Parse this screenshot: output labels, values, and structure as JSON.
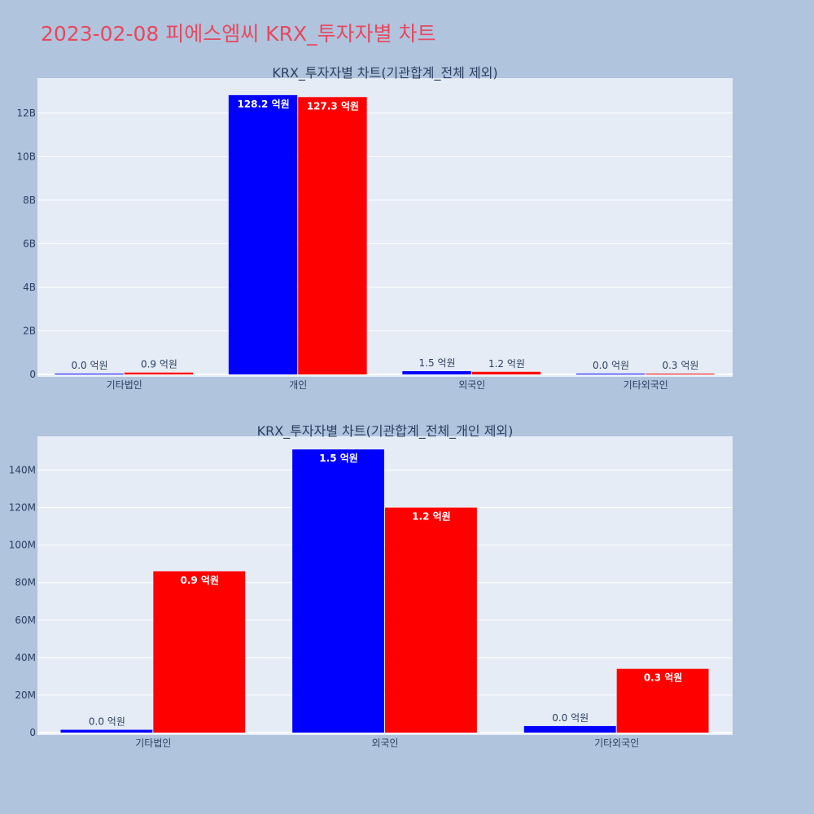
{
  "page": {
    "title": "2023-02-08 피에스엠씨 KRX_투자자별 차트"
  },
  "colors": {
    "background": "#b0c4de",
    "plot_bg": "#e5ecf6",
    "title": "#e8485e",
    "series_a": "#0000ff",
    "series_b": "#ff0000"
  },
  "chart_data": [
    {
      "type": "bar",
      "title": "KRX_투자자별 차트(기관합계_전체 제외)",
      "categories": [
        "기타법인",
        "개인",
        "외국인",
        "기타외국인"
      ],
      "series": [
        {
          "values": [
            2000000,
            12820000000,
            150000000,
            3000000
          ],
          "labels": [
            "0.0 억원",
            "128.2 억원",
            "1.5 억원",
            "0.0 억원"
          ],
          "color": "#0000ff"
        },
        {
          "values": [
            86000000,
            12730000000,
            120000000,
            34000000
          ],
          "labels": [
            "0.9 억원",
            "127.3 억원",
            "1.2 억원",
            "0.3 억원"
          ],
          "color": "#ff0000"
        }
      ],
      "ylim": [
        0,
        13600000000
      ],
      "yticks": [
        0,
        2000000000,
        4000000000,
        6000000000,
        8000000000,
        10000000000,
        12000000000
      ],
      "ytick_labels": [
        "0",
        "2B",
        "4B",
        "6B",
        "8B",
        "10B",
        "12B"
      ],
      "grid": true
    },
    {
      "type": "bar",
      "title": "KRX_투자자별 차트(기관합계_전체_개인 제외)",
      "categories": [
        "기타법인",
        "외국인",
        "기타외국인"
      ],
      "series": [
        {
          "values": [
            1500000,
            151000000,
            3500000
          ],
          "labels": [
            "0.0 억원",
            "1.5 억원",
            "0.0 억원"
          ],
          "color": "#0000ff"
        },
        {
          "values": [
            86000000,
            120000000,
            34000000
          ],
          "labels": [
            "0.9 억원",
            "1.2 억원",
            "0.3 억원"
          ],
          "color": "#ff0000"
        }
      ],
      "ylim": [
        0,
        158000000
      ],
      "yticks": [
        0,
        20000000,
        40000000,
        60000000,
        80000000,
        100000000,
        120000000,
        140000000
      ],
      "ytick_labels": [
        "0",
        "20M",
        "40M",
        "60M",
        "80M",
        "100M",
        "120M",
        "140M"
      ],
      "grid": true
    }
  ]
}
